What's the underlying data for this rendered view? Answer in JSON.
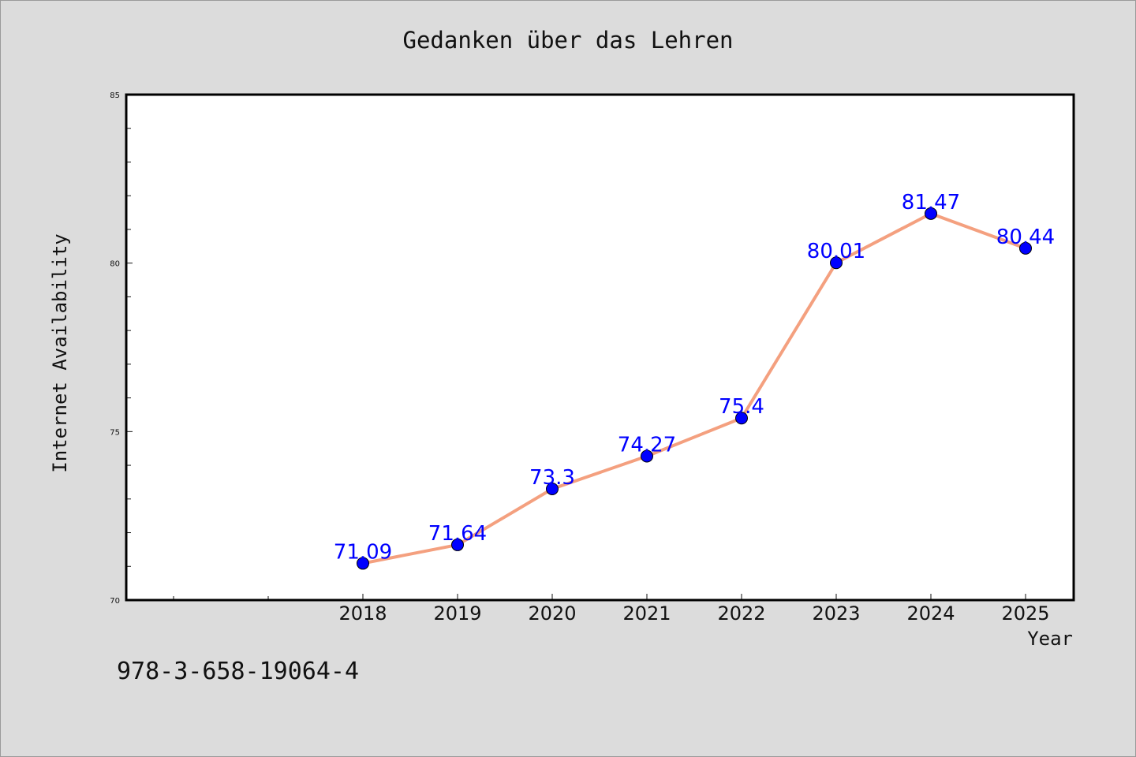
{
  "chart_data": {
    "type": "line",
    "title": "Gedanken über das Lehren",
    "xlabel": "Year",
    "ylabel": "Internet Availability",
    "categories": [
      "2018",
      "2019",
      "2020",
      "2021",
      "2022",
      "2023",
      "2024",
      "2025"
    ],
    "series": [
      {
        "values": [
          71.09,
          71.64,
          73.3,
          74.27,
          75.4,
          80.01,
          81.47,
          80.44
        ],
        "data_labels": [
          "71.09",
          "71.64",
          "73.3",
          "74.27",
          "75.4",
          "80.01",
          "81.47",
          "80.44"
        ]
      }
    ],
    "ylim": [
      70,
      85
    ],
    "y_major_ticks": [
      70,
      75,
      80,
      85
    ],
    "y_minor_step": 1,
    "grid": false,
    "legend": "none",
    "line_color": "#f4a07f",
    "marker_color": "#0000ff",
    "label_color": "#0000ff",
    "background_color": "#dcdcdc",
    "plot_background_color": "#ffffff"
  },
  "footer": {
    "isbn": "978-3-658-19064-4"
  }
}
